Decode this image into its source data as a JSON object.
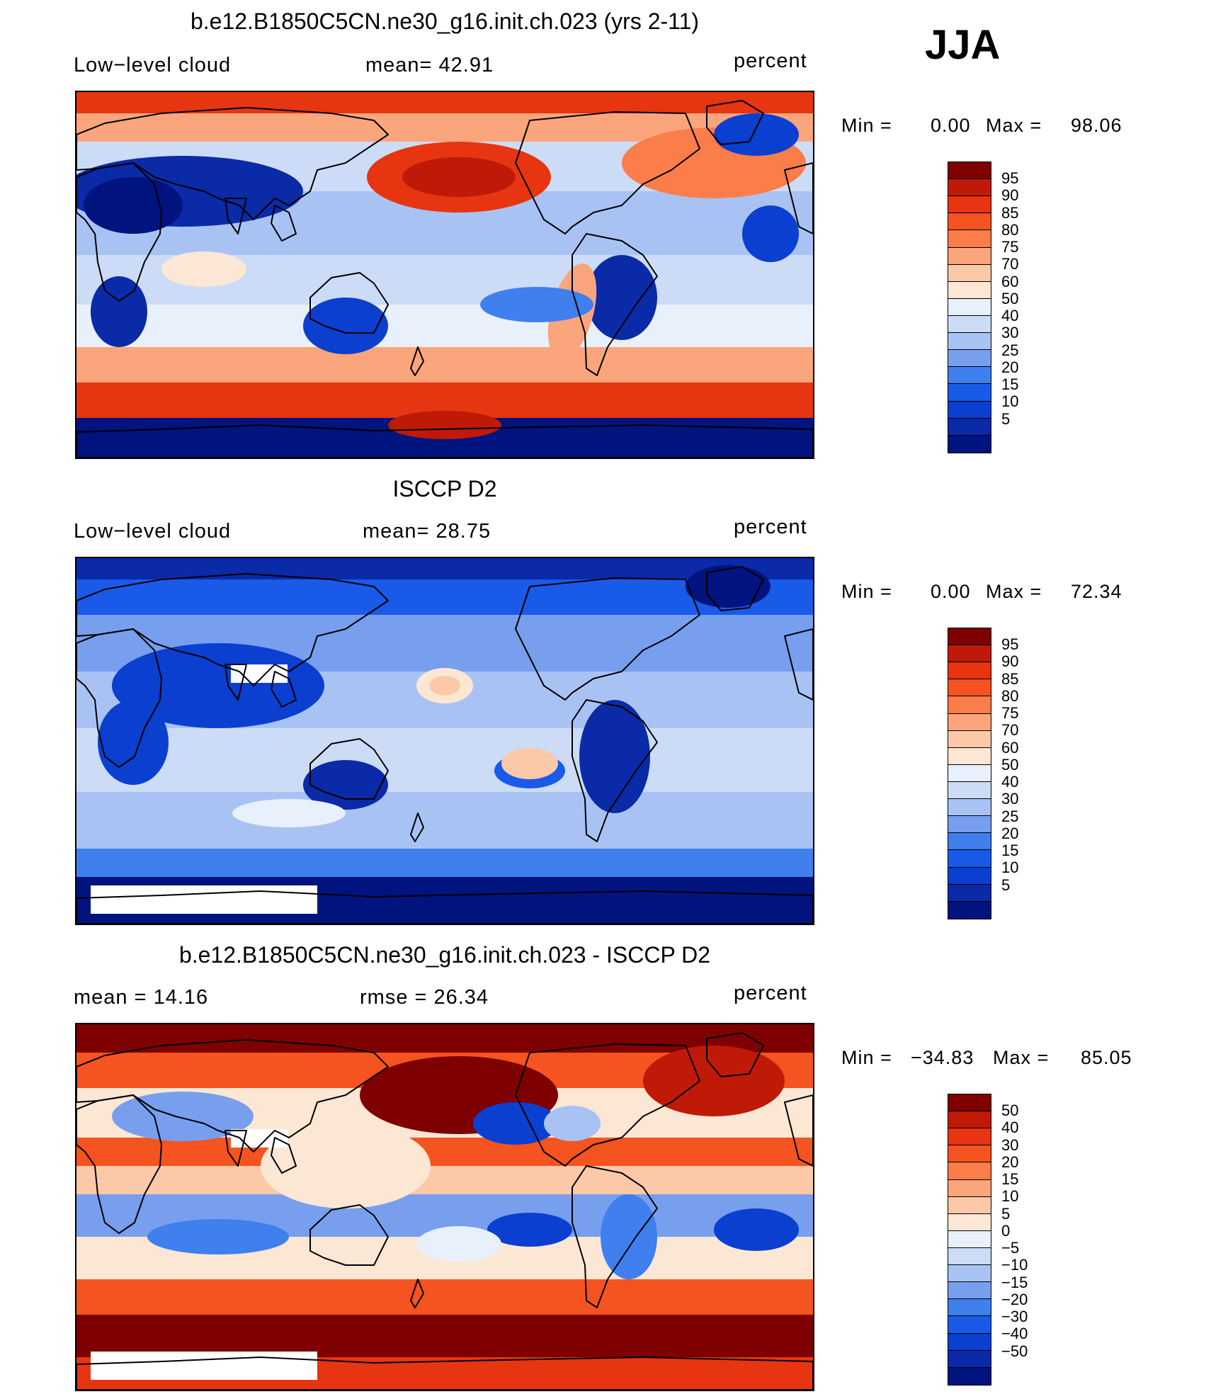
{
  "season": "JJA",
  "colors": {
    "standard": [
      "#00137e",
      "#0a2aa8",
      "#0a3fd0",
      "#1a5ae8",
      "#3f7fee",
      "#779fee",
      "#a8c3f3",
      "#ccdcf6",
      "#e8f0fb",
      "#fce7d4",
      "#fcc9a8",
      "#fba57c",
      "#fb7d4a",
      "#f5531f",
      "#e63510",
      "#bf1a08",
      "#7e0000"
    ],
    "difference": [
      "#00137e",
      "#0a2aa8",
      "#0a3fd0",
      "#1a5ae8",
      "#3f7fee",
      "#779fee",
      "#a8c3f3",
      "#ccdcf6",
      "#e8f0fb",
      "#fce7d4",
      "#fcc9a8",
      "#fba57c",
      "#fb7d4a",
      "#f5531f",
      "#e63510",
      "#bf1a08",
      "#7e0000"
    ]
  },
  "panels": [
    {
      "title": "b.e12.B1850C5CN.ne30_g16.init.ch.023 (yrs 2-11)",
      "left_label": "Low−level cloud",
      "center_label": "mean=   42.91",
      "right_label": "percent",
      "min_label": "Min =",
      "min_value": "0.00",
      "max_label": "Max =",
      "max_value": "98.06",
      "colorbar_labels": [
        "95",
        "90",
        "85",
        "80",
        "75",
        "70",
        "60",
        "50",
        "40",
        "30",
        "25",
        "20",
        "15",
        "10",
        "5"
      ],
      "map_style": "model"
    },
    {
      "title": "ISCCP D2",
      "left_label": "Low−level cloud",
      "center_label": "mean=   28.75",
      "right_label": "percent",
      "min_label": "Min =",
      "min_value": "0.00",
      "max_label": "Max =",
      "max_value": "72.34",
      "colorbar_labels": [
        "95",
        "90",
        "85",
        "80",
        "75",
        "70",
        "60",
        "50",
        "40",
        "30",
        "25",
        "20",
        "15",
        "10",
        "5"
      ],
      "map_style": "obs"
    },
    {
      "title": "b.e12.B1850C5CN.ne30_g16.init.ch.023 - ISCCP D2",
      "left_label": "mean =   14.16",
      "center_label": "rmse =   26.34",
      "right_label": "percent",
      "min_label": "Min =",
      "min_value": "−34.83",
      "max_label": "Max =",
      "max_value": "85.05",
      "colorbar_labels": [
        "50",
        "40",
        "30",
        "20",
        "15",
        "10",
        "5",
        "0",
        "−5",
        "−10",
        "−15",
        "−20",
        "−30",
        "−40",
        "−50"
      ],
      "map_style": "diff"
    }
  ]
}
